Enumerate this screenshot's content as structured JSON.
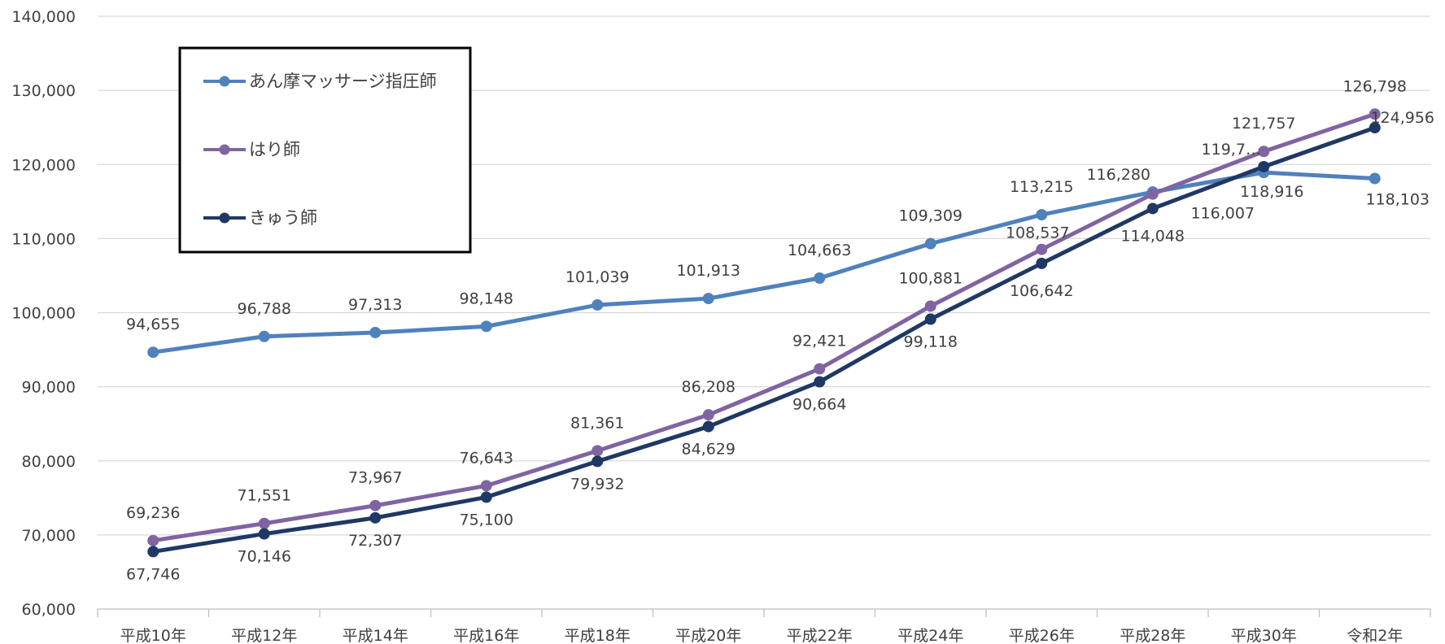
{
  "chart_data": {
    "type": "line",
    "categories": [
      "平成10年",
      "平成12年",
      "平成14年",
      "平成16年",
      "平成18年",
      "平成20年",
      "平成22年",
      "平成24年",
      "平成26年",
      "平成28年",
      "平成30年",
      "令和2年"
    ],
    "ylim": [
      60000,
      140000
    ],
    "yticks": [
      "60,000",
      "70,000",
      "80,000",
      "90,000",
      "100,000",
      "110,000",
      "120,000",
      "130,000",
      "140,000"
    ],
    "grid": true,
    "legend_position": "top-left",
    "series": [
      {
        "name": "あん摩マッサージ指圧師",
        "color": "#4f81bd",
        "values": [
          94655,
          96788,
          97313,
          98148,
          101039,
          101913,
          104663,
          109309,
          113215,
          116280,
          118916,
          118103
        ],
        "labels": [
          "94,655",
          "96,788",
          "97,313",
          "98,148",
          "101,039",
          "101,913",
          "104,663",
          "109,309",
          "113,215",
          "116,280",
          "118,916",
          "118,103"
        ]
      },
      {
        "name": "はり師",
        "color": "#8064a2",
        "values": [
          69236,
          71551,
          73967,
          76643,
          81361,
          86208,
          92421,
          100881,
          108537,
          116007,
          121757,
          126798
        ],
        "labels": [
          "69,236",
          "71,551",
          "73,967",
          "76,643",
          "81,361",
          "86,208",
          "92,421",
          "100,881",
          "108,537",
          "116,007",
          "121,757",
          "126,798"
        ]
      },
      {
        "name": "きゅう師",
        "color": "#1f3864",
        "values": [
          67746,
          70146,
          72307,
          75100,
          79932,
          84629,
          90664,
          99118,
          106642,
          114048,
          119700,
          124956
        ],
        "labels": [
          "67,746",
          "70,146",
          "72,307",
          "75,100",
          "79,932",
          "84,629",
          "90,664",
          "99,118",
          "106,642",
          "114,048",
          "119,7…",
          "124,956"
        ]
      }
    ]
  }
}
